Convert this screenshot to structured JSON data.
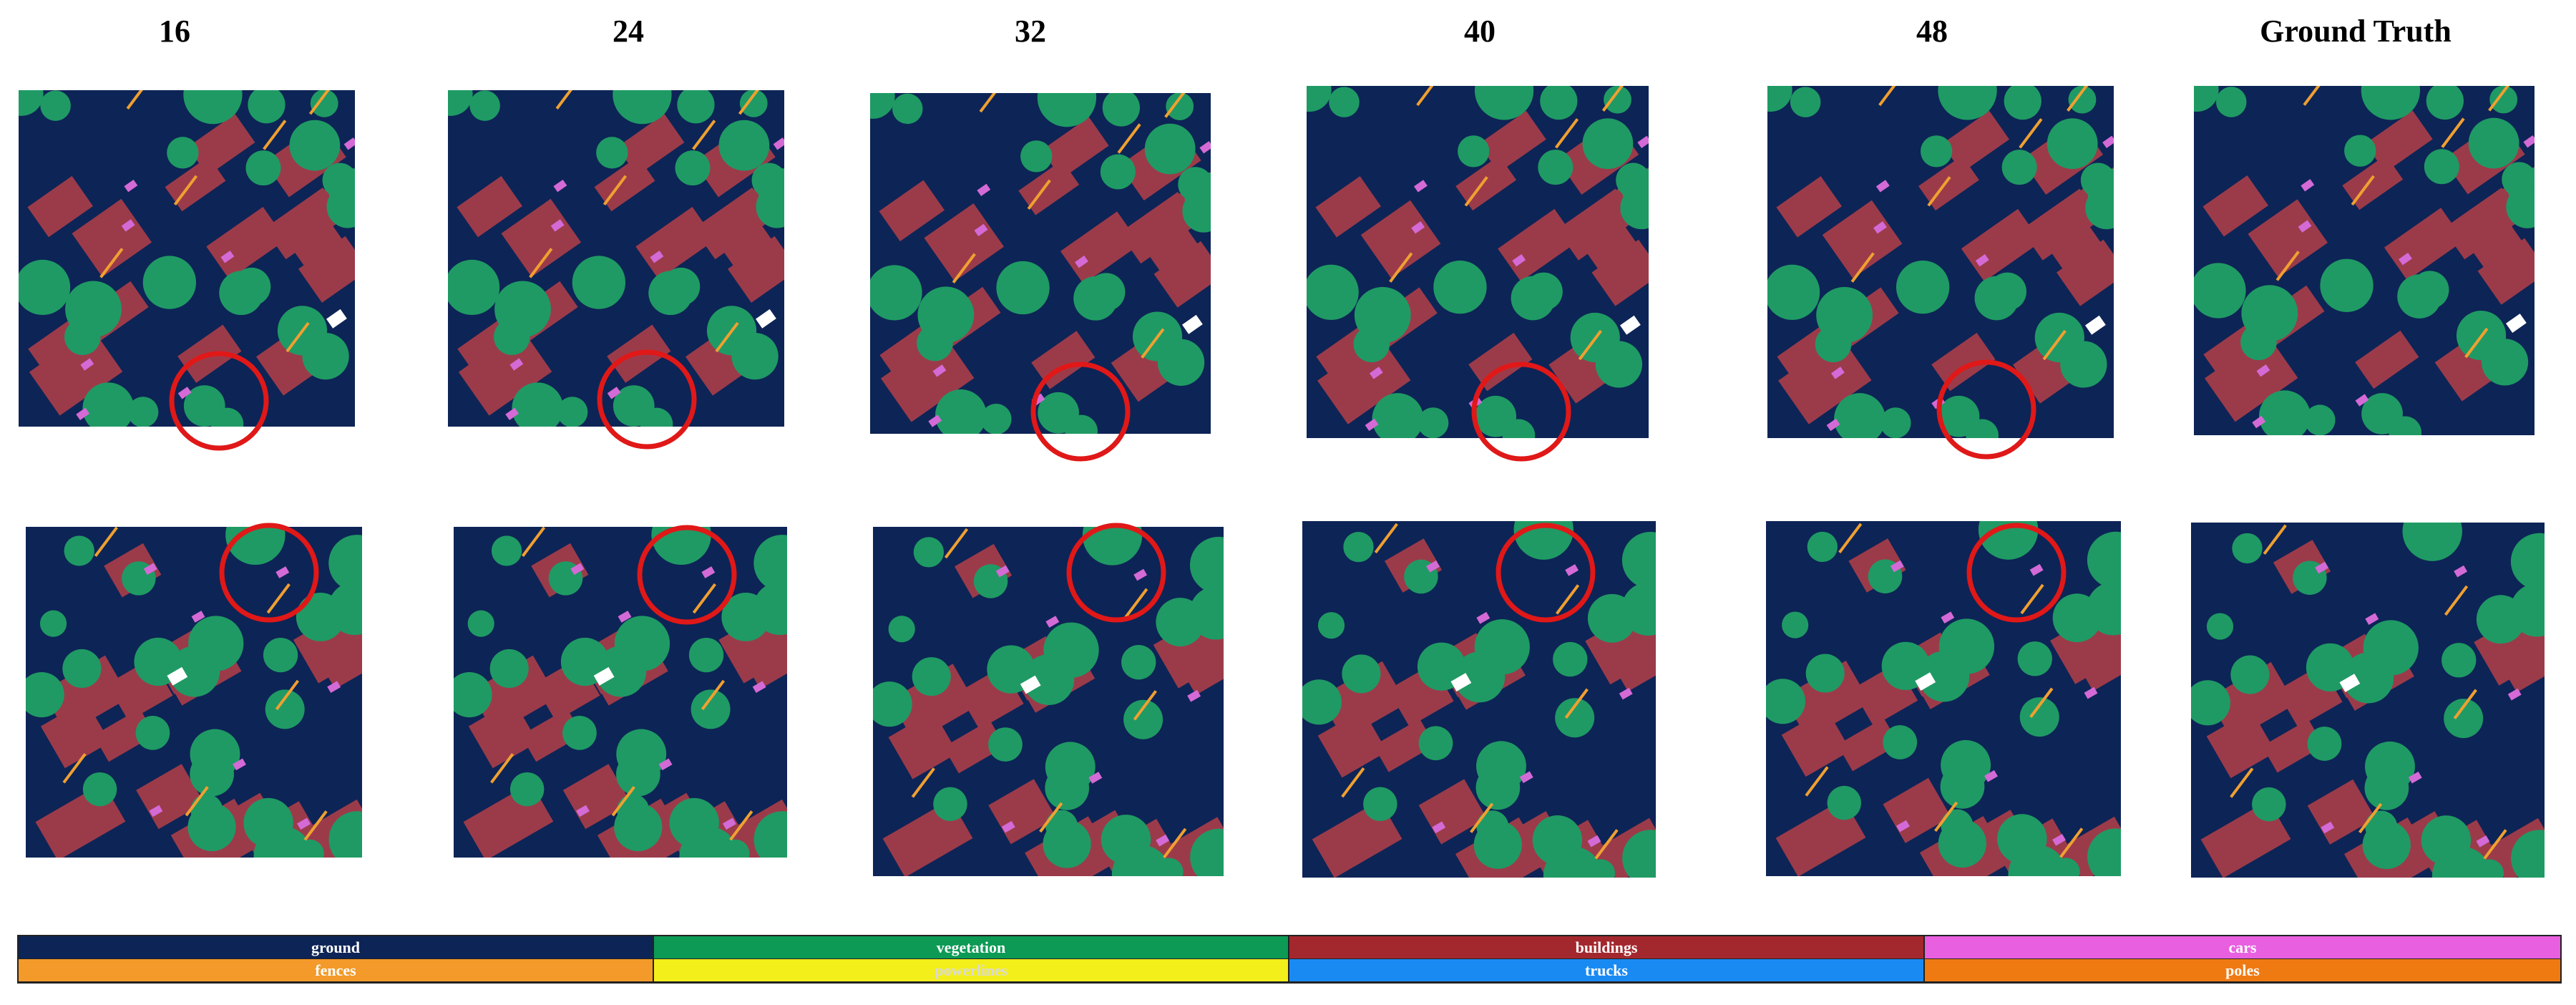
{
  "columns": [
    {
      "label": "16"
    },
    {
      "label": "24"
    },
    {
      "label": "32"
    },
    {
      "label": "40"
    },
    {
      "label": "48"
    },
    {
      "label": "Ground Truth"
    }
  ],
  "classes": [
    {
      "label": "ground",
      "color": "#0d2456"
    },
    {
      "label": "vegetation",
      "color": "#0c9a55"
    },
    {
      "label": "buildings",
      "color": "#a3282e"
    },
    {
      "label": "cars",
      "color": "#e85fe0"
    },
    {
      "label": "fences",
      "color": "#f39a2a"
    },
    {
      "label": "powerlines",
      "color": "#f3ef1a"
    },
    {
      "label": "trucks",
      "color": "#1a8af3"
    },
    {
      "label": "poles",
      "color": "#f07a12"
    }
  ],
  "panel_colors": {
    "ground": "#0d2456",
    "vegetation": "#1f9a64",
    "buildings": "#9b3b4a",
    "cars": "#d46ad6",
    "fences": "#f0a030",
    "highlight": "#e01818",
    "truck": "#ffffff"
  }
}
